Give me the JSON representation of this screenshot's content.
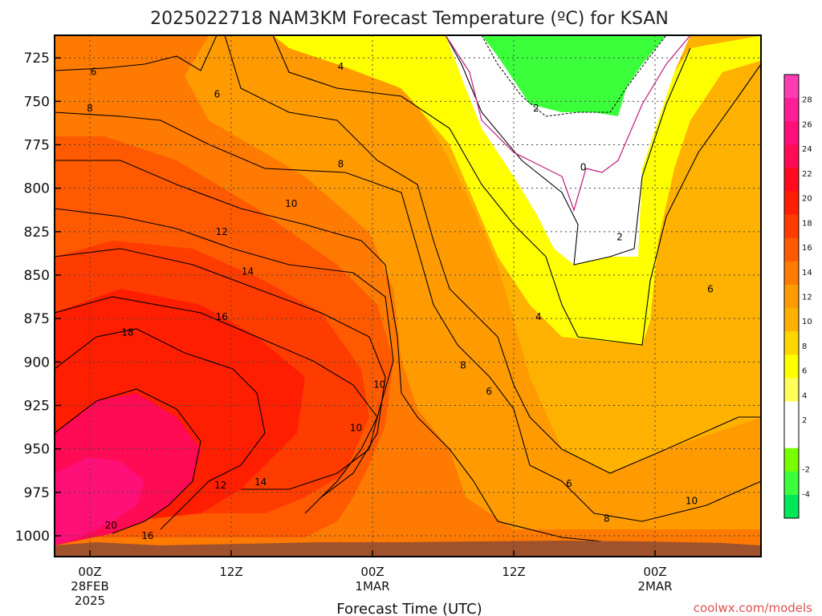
{
  "chart_data": {
    "type": "heatmap",
    "title": "2025022718 NAM3KM Forecast Temperature (ºC) for KSAN",
    "xlabel": "Forecast Time (UTC)",
    "ylabel": "",
    "y_axis": {
      "reversed": true,
      "range": [
        1012,
        712
      ],
      "ticks": [
        725,
        750,
        775,
        800,
        825,
        850,
        875,
        900,
        925,
        950,
        975,
        1000
      ]
    },
    "x_axis": {
      "range": [
        -3,
        57
      ],
      "ticks": [
        {
          "x": 0,
          "lines": [
            "00Z",
            "28FEB",
            "2025"
          ]
        },
        {
          "x": 12,
          "lines": [
            "12Z"
          ]
        },
        {
          "x": 24,
          "lines": [
            "00Z",
            "1MAR"
          ]
        },
        {
          "x": 36,
          "lines": [
            "12Z"
          ]
        },
        {
          "x": 48,
          "lines": [
            "00Z",
            "2MAR"
          ]
        }
      ]
    },
    "grid": true,
    "colorbar": {
      "placement": "right",
      "levels": [
        -6,
        -4,
        -2,
        0,
        2,
        4,
        6,
        8,
        10,
        12,
        14,
        16,
        18,
        20,
        22,
        24,
        26,
        28,
        30
      ],
      "colors": [
        "#00e85a",
        "#3cff3c",
        "#78ff00",
        "#ffffff",
        "#ffffff",
        "#ffff5a",
        "#ffff00",
        "#ffd700",
        "#ffb100",
        "#ff9b00",
        "#ff7a00",
        "#ff5a00",
        "#ff3c00",
        "#ff1e00",
        "#ff0a1e",
        "#ff0a55",
        "#ff0f78",
        "#ff1e96",
        "#ff3cb4"
      ],
      "tick_labels": [
        "-4",
        "-2",
        "2",
        "4",
        "6",
        "8",
        "10",
        "12",
        "14",
        "16",
        "18",
        "20",
        "22",
        "24",
        "26",
        "28"
      ]
    },
    "contour_levels": [
      -2,
      0,
      2,
      4,
      6,
      8,
      10,
      12,
      14,
      16,
      18,
      20
    ],
    "contour_labels": [
      {
        "text": "6",
        "x": 0.3,
        "y": 733
      },
      {
        "text": "6",
        "x": 10.8,
        "y": 746
      },
      {
        "text": "4",
        "x": 21.3,
        "y": 730
      },
      {
        "text": "8",
        "x": 0,
        "y": 754
      },
      {
        "text": "8",
        "x": 21.3,
        "y": 786
      },
      {
        "text": "10",
        "x": 17.1,
        "y": 809
      },
      {
        "text": "12",
        "x": 11.2,
        "y": 825
      },
      {
        "text": "14",
        "x": 13.4,
        "y": 848
      },
      {
        "text": "16",
        "x": 11.2,
        "y": 874
      },
      {
        "text": "18",
        "x": 3.2,
        "y": 883
      },
      {
        "text": "20",
        "x": 1.8,
        "y": 994
      },
      {
        "text": "16",
        "x": 4.9,
        "y": 1000
      },
      {
        "text": "12",
        "x": 11.1,
        "y": 971
      },
      {
        "text": "14",
        "x": 14.5,
        "y": 969
      },
      {
        "text": "10",
        "x": 24.6,
        "y": 913
      },
      {
        "text": "10",
        "x": 22.6,
        "y": 938
      },
      {
        "text": "8",
        "x": 31.7,
        "y": 902
      },
      {
        "text": "6",
        "x": 33.9,
        "y": 917
      },
      {
        "text": "6",
        "x": 40.7,
        "y": 970
      },
      {
        "text": "8",
        "x": 43.9,
        "y": 990
      },
      {
        "text": "10",
        "x": 51.1,
        "y": 980
      },
      {
        "text": "4",
        "x": 38.1,
        "y": 874
      },
      {
        "text": "2",
        "x": 37.9,
        "y": 754
      },
      {
        "text": "0",
        "x": 41.9,
        "y": 788
      },
      {
        "text": "2",
        "x": 45.0,
        "y": 828
      },
      {
        "text": "6",
        "x": 52.7,
        "y": 858
      }
    ]
  },
  "credit": "coolwx.com/models"
}
